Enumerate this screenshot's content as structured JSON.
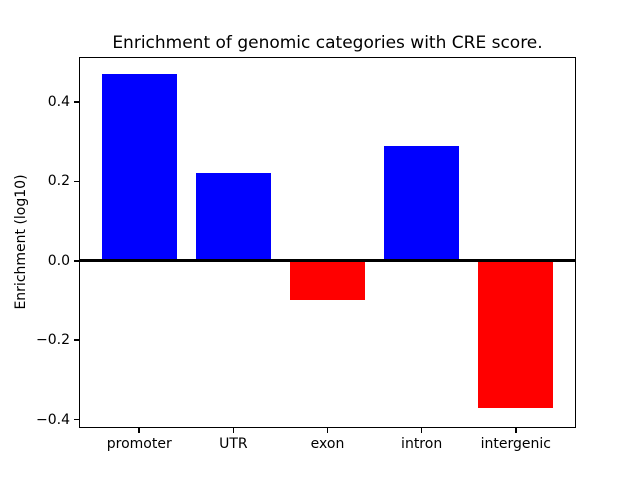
{
  "figure": {
    "background": "#ffffff",
    "text_color": "#000000",
    "axis_color": "#000000"
  },
  "chart_data": {
    "type": "bar",
    "title": "Enrichment of genomic categories with CRE score.",
    "xlabel": "",
    "ylabel": "Enrichment (log10)",
    "categories": [
      "promoter",
      "UTR",
      "exon",
      "intron",
      "intergenic"
    ],
    "values": [
      0.47,
      0.22,
      -0.1,
      0.29,
      -0.37
    ],
    "bar_colors": [
      "#0000ff",
      "#0000ff",
      "#ff0000",
      "#0000ff",
      "#ff0000"
    ],
    "positive_color": "#0000ff",
    "negative_color": "#ff0000",
    "yticks": [
      -0.4,
      -0.2,
      0.0,
      0.2,
      0.4
    ],
    "ytick_labels": [
      "−0.4",
      "−0.2",
      "0.0",
      "0.2",
      "0.4"
    ],
    "ylim": [
      -0.421,
      0.513
    ],
    "xlim_units": [
      -0.64,
      4.64
    ],
    "bar_width_units": 0.8,
    "zero_line": true,
    "grid": false,
    "legend": "none"
  }
}
